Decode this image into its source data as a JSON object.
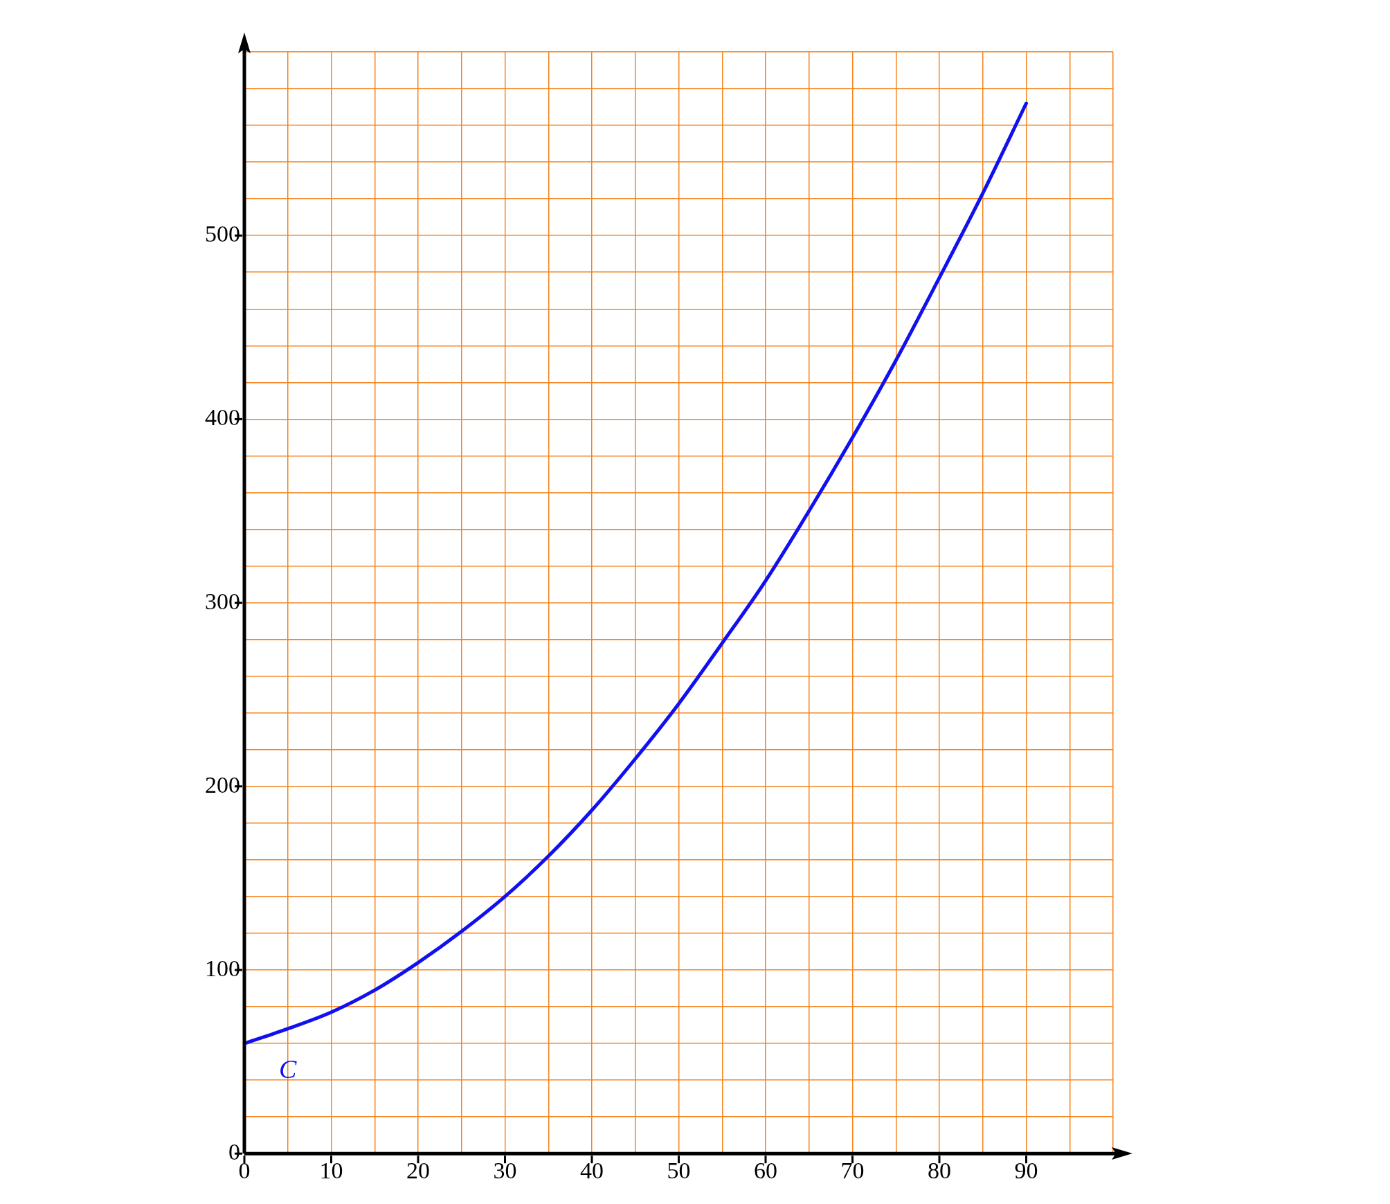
{
  "chart_data": {
    "type": "line",
    "x": [
      0,
      5,
      10,
      15,
      20,
      25,
      30,
      35,
      40,
      45,
      50,
      55,
      60,
      65,
      70,
      75,
      80,
      85,
      90
    ],
    "series": [
      {
        "name": "C",
        "color": "#1010f0",
        "values": [
          60,
          68,
          77,
          89,
          104,
          121,
          140,
          162,
          187,
          215,
          245,
          278,
          312,
          350,
          390,
          432,
          477,
          523,
          572
        ]
      }
    ],
    "xlim": [
      0,
      100
    ],
    "ylim": [
      0,
      600
    ],
    "xticks": [
      0,
      {
        "value": 5,
        "label": null
      },
      10,
      {
        "value": 15,
        "label": null
      },
      20,
      {
        "value": 25,
        "label": null
      },
      30,
      {
        "value": 35,
        "label": null
      },
      40,
      {
        "value": 45,
        "label": null
      },
      50,
      {
        "value": 55,
        "label": null
      },
      60,
      {
        "value": 65,
        "label": null
      },
      70,
      {
        "value": 75,
        "label": null
      },
      80,
      {
        "value": 85,
        "label": null
      },
      90,
      {
        "value": 95,
        "label": null
      },
      {
        "value": 100,
        "label": null
      }
    ],
    "yticks": [
      0,
      {
        "value": 20,
        "label": null
      },
      {
        "value": 40,
        "label": null
      },
      {
        "value": 60,
        "label": null
      },
      {
        "value": 80,
        "label": null
      },
      100,
      {
        "value": 120,
        "label": null
      },
      {
        "value": 140,
        "label": null
      },
      {
        "value": 160,
        "label": null
      },
      {
        "value": 180,
        "label": null
      },
      200,
      {
        "value": 220,
        "label": null
      },
      {
        "value": 240,
        "label": null
      },
      {
        "value": 260,
        "label": null
      },
      {
        "value": 280,
        "label": null
      },
      300,
      {
        "value": 320,
        "label": null
      },
      {
        "value": 340,
        "label": null
      },
      {
        "value": 360,
        "label": null
      },
      {
        "value": 380,
        "label": null
      },
      400,
      {
        "value": 420,
        "label": null
      },
      {
        "value": 440,
        "label": null
      },
      {
        "value": 460,
        "label": null
      },
      {
        "value": 480,
        "label": null
      },
      500,
      {
        "value": 520,
        "label": null
      },
      {
        "value": 540,
        "label": null
      },
      {
        "value": 560,
        "label": null
      },
      {
        "value": 580,
        "label": null
      },
      {
        "value": 600,
        "label": null
      }
    ],
    "grid": true,
    "marker": "none",
    "line_style": "solid",
    "legend": false
  }
}
